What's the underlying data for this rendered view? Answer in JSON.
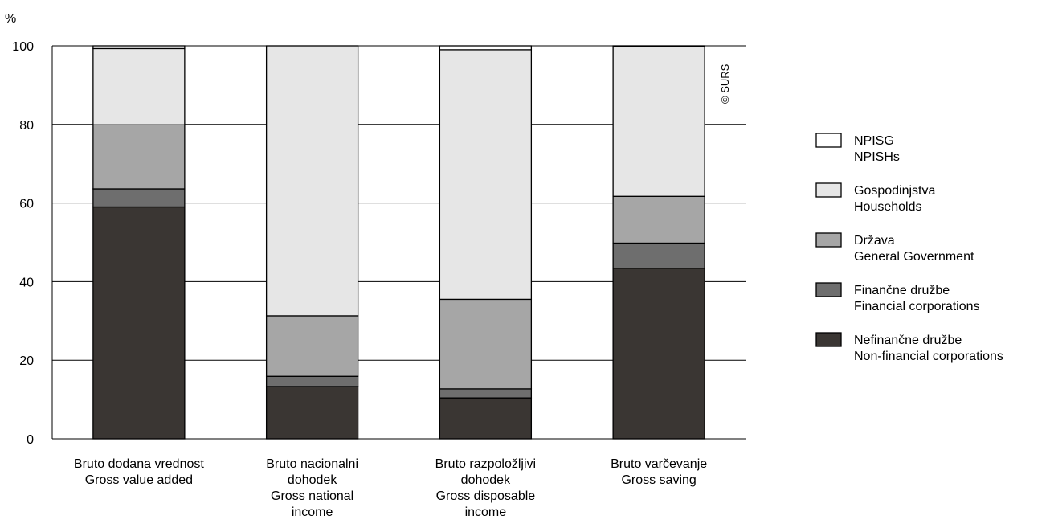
{
  "chart_data": {
    "type": "bar",
    "stacked": true,
    "y_unit": "%",
    "ylim": [
      0,
      100
    ],
    "yticks": [
      "0",
      "20",
      "40",
      "60",
      "80",
      "100"
    ],
    "grid": true,
    "legend_position": "right",
    "categories": [
      [
        "Bruto dodana vrednost",
        "Gross value added"
      ],
      [
        "Bruto nacionalni",
        "dohodek",
        "Gross national",
        "income"
      ],
      [
        "Bruto razpoložljivi",
        "dohodek",
        "Gross disposable",
        "income"
      ],
      [
        "Bruto varčevanje",
        "Gross saving"
      ]
    ],
    "series": [
      {
        "name": [
          "Nefinančne družbe",
          "Non-financial corporations"
        ],
        "color": "#3a3633",
        "values": [
          59.0,
          13.3,
          10.4,
          43.4
        ]
      },
      {
        "name": [
          "Finančne družbe",
          "Financial corporations"
        ],
        "color": "#6e6e6e",
        "values": [
          4.6,
          2.6,
          2.3,
          6.4
        ]
      },
      {
        "name": [
          "Država",
          "General Government"
        ],
        "color": "#a6a6a6",
        "values": [
          16.3,
          15.4,
          22.8,
          11.9
        ]
      },
      {
        "name": [
          "Gospodinjstva",
          "Households"
        ],
        "color": "#e6e6e6",
        "values": [
          19.4,
          68.7,
          63.5,
          38.1
        ]
      },
      {
        "name": [
          "NPISG",
          "NPISHs"
        ],
        "color": "#ffffff",
        "values": [
          0.7,
          0.0,
          1.0,
          0.2
        ]
      }
    ],
    "watermark": "© SURS"
  }
}
